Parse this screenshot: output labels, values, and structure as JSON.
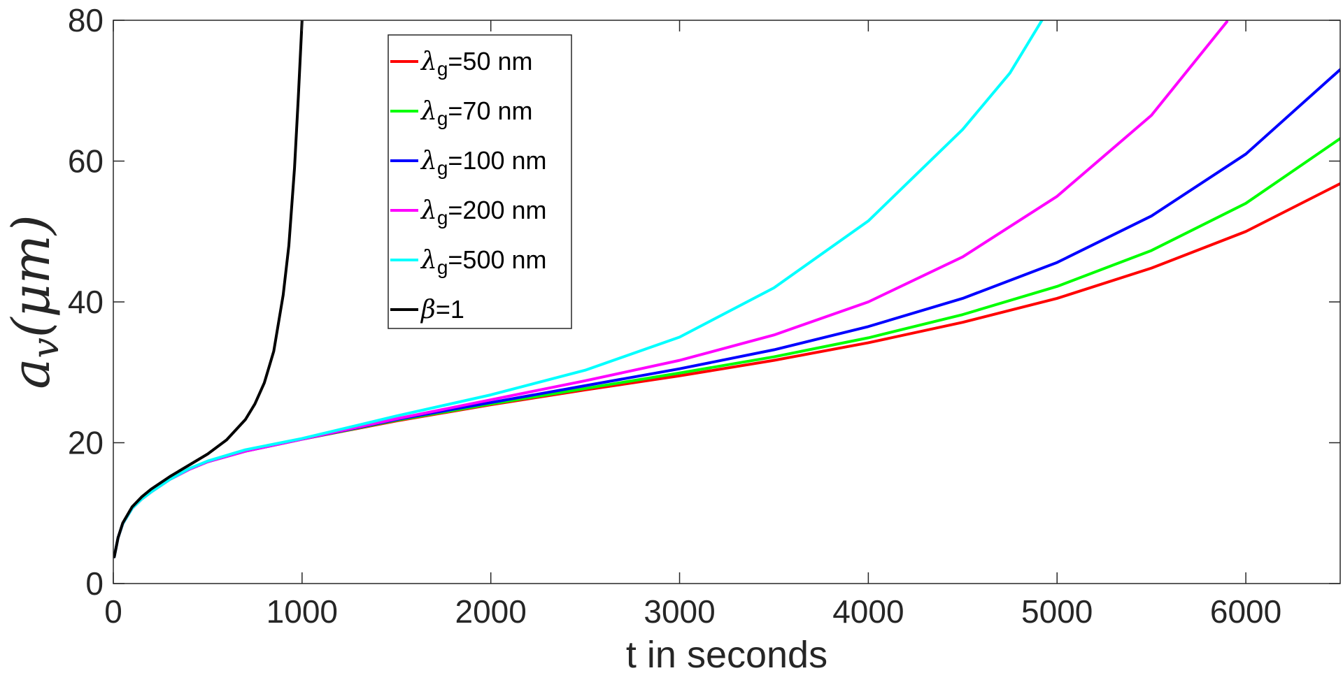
{
  "chart_data": {
    "type": "line",
    "title": "",
    "xlabel": "t in seconds",
    "ylabel": {
      "base": "a",
      "sub": "v",
      "unit": "(μm)"
    },
    "xlim": [
      0,
      6500
    ],
    "ylim": [
      0,
      80
    ],
    "xticks": [
      0,
      1000,
      2000,
      3000,
      4000,
      5000,
      6000
    ],
    "yticks": [
      0,
      20,
      40,
      60,
      80
    ],
    "xtick_labels": [
      "0",
      "1000",
      "2000",
      "3000",
      "4000",
      "5000",
      "6000"
    ],
    "ytick_labels": [
      "0",
      "20",
      "40",
      "60",
      "80"
    ],
    "grid": false,
    "legend_position": "top-center",
    "series": [
      {
        "name": "λg=50 nm",
        "greek": "λ",
        "sub": "g",
        "rest": "=50 nm",
        "color": "#ff0000",
        "x": [
          5,
          25,
          50,
          100,
          150,
          200,
          300,
          400,
          500,
          700,
          1000,
          1500,
          2000,
          2500,
          3000,
          3500,
          4000,
          4500,
          5000,
          5500,
          6000,
          6500
        ],
        "y": [
          3.8,
          6.5,
          8.5,
          10.7,
          12.0,
          13.0,
          14.8,
          16.2,
          17.3,
          18.8,
          20.5,
          23.1,
          25.4,
          27.5,
          29.5,
          31.7,
          34.2,
          37.1,
          40.5,
          44.8,
          50.0,
          56.8
        ]
      },
      {
        "name": "λg=70 nm",
        "greek": "λ",
        "sub": "g",
        "rest": "=70 nm",
        "color": "#00ff00",
        "x": [
          5,
          25,
          50,
          100,
          150,
          200,
          300,
          400,
          500,
          700,
          1000,
          1500,
          2000,
          2500,
          3000,
          3500,
          4000,
          4500,
          5000,
          5500,
          6000,
          6500
        ],
        "y": [
          3.8,
          6.5,
          8.5,
          10.7,
          12.0,
          13.0,
          14.8,
          16.2,
          17.3,
          18.8,
          20.5,
          23.2,
          25.5,
          27.7,
          29.9,
          32.2,
          34.9,
          38.2,
          42.2,
          47.3,
          54.0,
          63.2
        ]
      },
      {
        "name": "λg=100 nm",
        "greek": "λ",
        "sub": "g",
        "rest": "=100 nm",
        "color": "#0000ff",
        "x": [
          5,
          25,
          50,
          100,
          150,
          200,
          300,
          400,
          500,
          700,
          1000,
          1500,
          2000,
          2500,
          3000,
          3500,
          4000,
          4500,
          5000,
          5500,
          6000,
          6500
        ],
        "y": [
          3.8,
          6.5,
          8.5,
          10.7,
          12.0,
          13.0,
          14.8,
          16.2,
          17.3,
          18.8,
          20.5,
          23.3,
          25.7,
          28.1,
          30.5,
          33.2,
          36.5,
          40.5,
          45.6,
          52.2,
          61.0,
          73.0
        ]
      },
      {
        "name": "λg=200 nm",
        "greek": "λ",
        "sub": "g",
        "rest": "=200 nm",
        "color": "#ff00ff",
        "x": [
          5,
          25,
          50,
          100,
          150,
          200,
          300,
          400,
          500,
          700,
          1000,
          1500,
          2000,
          2500,
          3000,
          3500,
          4000,
          4500,
          5000,
          5500,
          5900
        ],
        "y": [
          3.8,
          6.5,
          8.5,
          10.7,
          12.0,
          13.0,
          14.8,
          16.2,
          17.3,
          18.8,
          20.5,
          23.4,
          26.1,
          28.8,
          31.7,
          35.3,
          40.0,
          46.4,
          55.0,
          66.5,
          79.8
        ]
      },
      {
        "name": "λg=500 nm",
        "greek": "λ",
        "sub": "g",
        "rest": "=500 nm",
        "color": "#00ffff",
        "x": [
          5,
          25,
          50,
          100,
          150,
          200,
          300,
          400,
          500,
          700,
          1000,
          1500,
          2000,
          2500,
          3000,
          3500,
          4000,
          4500,
          4750,
          4920
        ],
        "y": [
          3.8,
          6.5,
          8.5,
          10.7,
          12.0,
          13.0,
          14.8,
          16.3,
          17.4,
          19.0,
          20.6,
          23.8,
          26.8,
          30.3,
          35.0,
          42.0,
          51.5,
          64.5,
          72.5,
          80.0
        ]
      },
      {
        "name": "β=1",
        "greek": "β",
        "sub": "",
        "rest": "=1",
        "color": "#000000",
        "x": [
          5,
          25,
          50,
          100,
          150,
          200,
          300,
          400,
          500,
          600,
          700,
          750,
          800,
          850,
          900,
          930,
          960,
          980,
          1000
        ],
        "y": [
          3.8,
          6.5,
          8.6,
          10.9,
          12.3,
          13.4,
          15.2,
          16.8,
          18.4,
          20.4,
          23.3,
          25.5,
          28.5,
          33.0,
          41.0,
          48.0,
          59.0,
          69.0,
          80.0
        ]
      }
    ]
  }
}
